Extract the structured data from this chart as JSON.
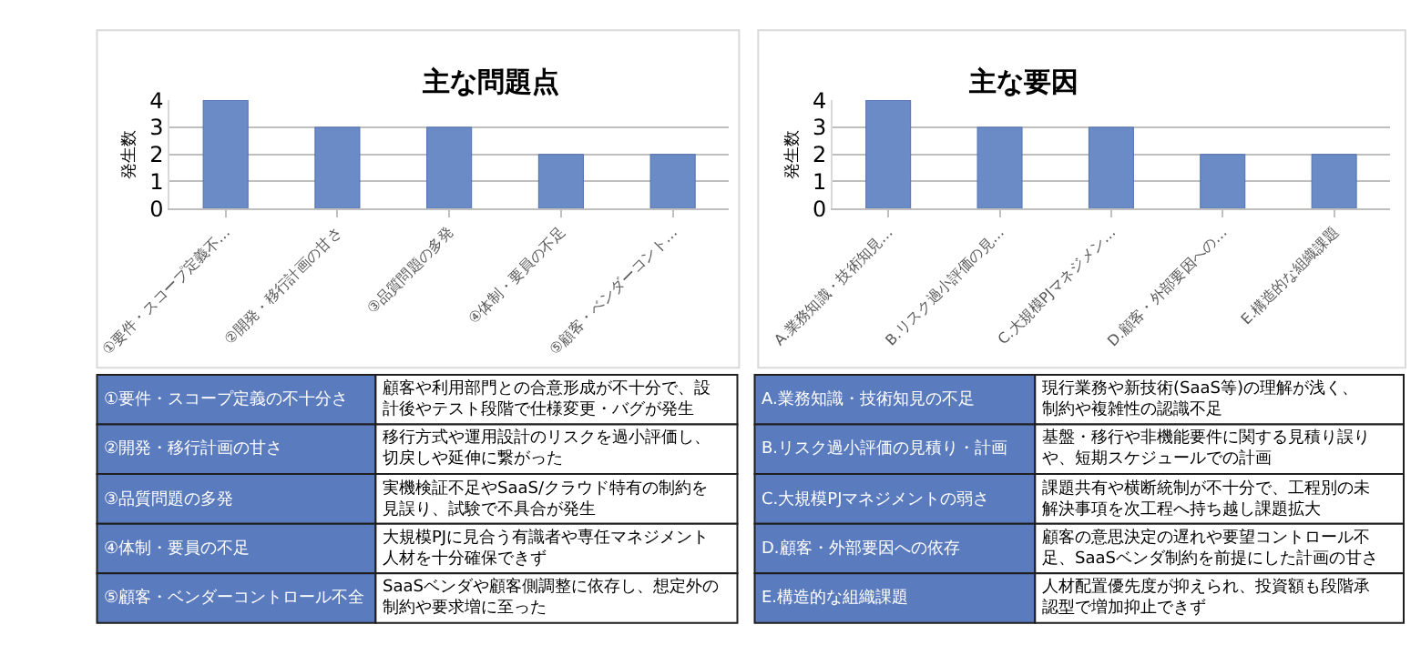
{
  "chart_data": [
    {
      "type": "bar",
      "title": "主な問題点",
      "ylabel": "発生数",
      "categories": [
        "①要件・スコープ定義不…",
        "②開発・移行計画の甘さ",
        "③品質問題の多発",
        "④体制・要員の不足",
        "⑤顧客・ベンダーコント…"
      ],
      "values": [
        4,
        3,
        3,
        2,
        2
      ],
      "color": "#6b8bc7",
      "ylim": [
        0,
        4
      ],
      "yticks": [
        0,
        1,
        2,
        3,
        4
      ],
      "grid": "y"
    },
    {
      "type": "bar",
      "title": "主な要因",
      "ylabel": "発生数",
      "categories": [
        "A.業務知識・技術知見…",
        "B.リスク過小評価の見…",
        "C.大規模PJマネジメン…",
        "D.顧客・外部要因への…",
        "E.構造的な組織課題"
      ],
      "values": [
        4,
        3,
        3,
        2,
        2
      ],
      "color": "#6b8bc7",
      "ylim": [
        0,
        4
      ],
      "yticks": [
        0,
        1,
        2,
        3,
        4
      ],
      "grid": "y"
    },
    {
      "type": "other",
      "annotations": [
        "①要件・スコープ定義の不十分さ",
        "顧客や利用部門との合意形成が不十分で、設計後やテスト段階で仕様変更・バグが発生",
        "②開発・移行計画の甘さ",
        "移行方式や運用設計のリスクを過小評価し、切戻しや延伸に繋がった",
        "③品質問題の多発",
        "実機検証不足やSaaS/クラウド特有の制約を見誤り、試験で不具合が発生",
        "④体制・要員の不足",
        "大規模PJに見合う有識者や専任マネジメント人材を十分確保できず",
        "⑤顧客・ベンダーコントロール不全",
        "SaaSベンダや顧客側調整に依存し、想定外の制約や要求増に至った"
      ]
    },
    {
      "type": "other",
      "annotations": [
        "A.業務知識・技術知見の不足",
        "現行業務や新技術(SaaS等)の理解が浅く、制約や複雑性の認識不足",
        "B.リスク過小評価の見積り・計画",
        "基盤・移行や非機能要件に関する見積り誤りや、短期スケジュールでの計画",
        "C.大規模PJマネジメントの弱さ",
        "課題共有や横断統制が不十分で、工程別の未解決事項を次工程へ持ち越し課題拡大",
        "D.顧客・外部要因への依存",
        "顧客の意思決定の遅れや要望コントロール不足、SaaSベンダ制約を前提にした計画の甘さ",
        "E.構造的な組織課題",
        "人材配置優先度が抑えられ、投資額も段階承認型で増加抑止できず"
      ]
    }
  ]
}
